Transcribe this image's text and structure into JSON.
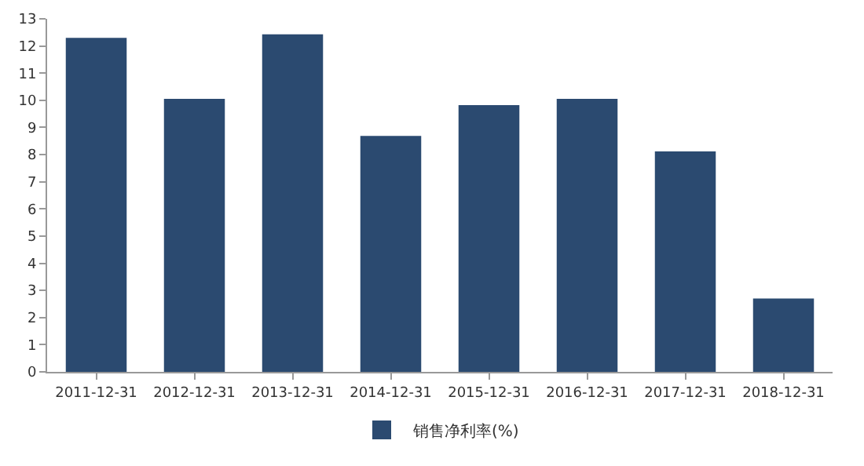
{
  "chart_data": {
    "type": "bar",
    "categories": [
      "2011-12-31",
      "2012-12-31",
      "2013-12-31",
      "2014-12-31",
      "2015-12-31",
      "2016-12-31",
      "2017-12-31",
      "2018-12-31"
    ],
    "series": [
      {
        "name": "销售净利率(%)",
        "color": "#2b4a70",
        "values": [
          12.3,
          10.05,
          12.43,
          8.69,
          9.82,
          10.05,
          8.12,
          2.7
        ]
      }
    ],
    "ylim": [
      0,
      13
    ],
    "yticks": [
      0,
      1,
      2,
      3,
      4,
      5,
      6,
      7,
      8,
      9,
      10,
      11,
      12,
      13
    ],
    "legend": "bottom"
  }
}
